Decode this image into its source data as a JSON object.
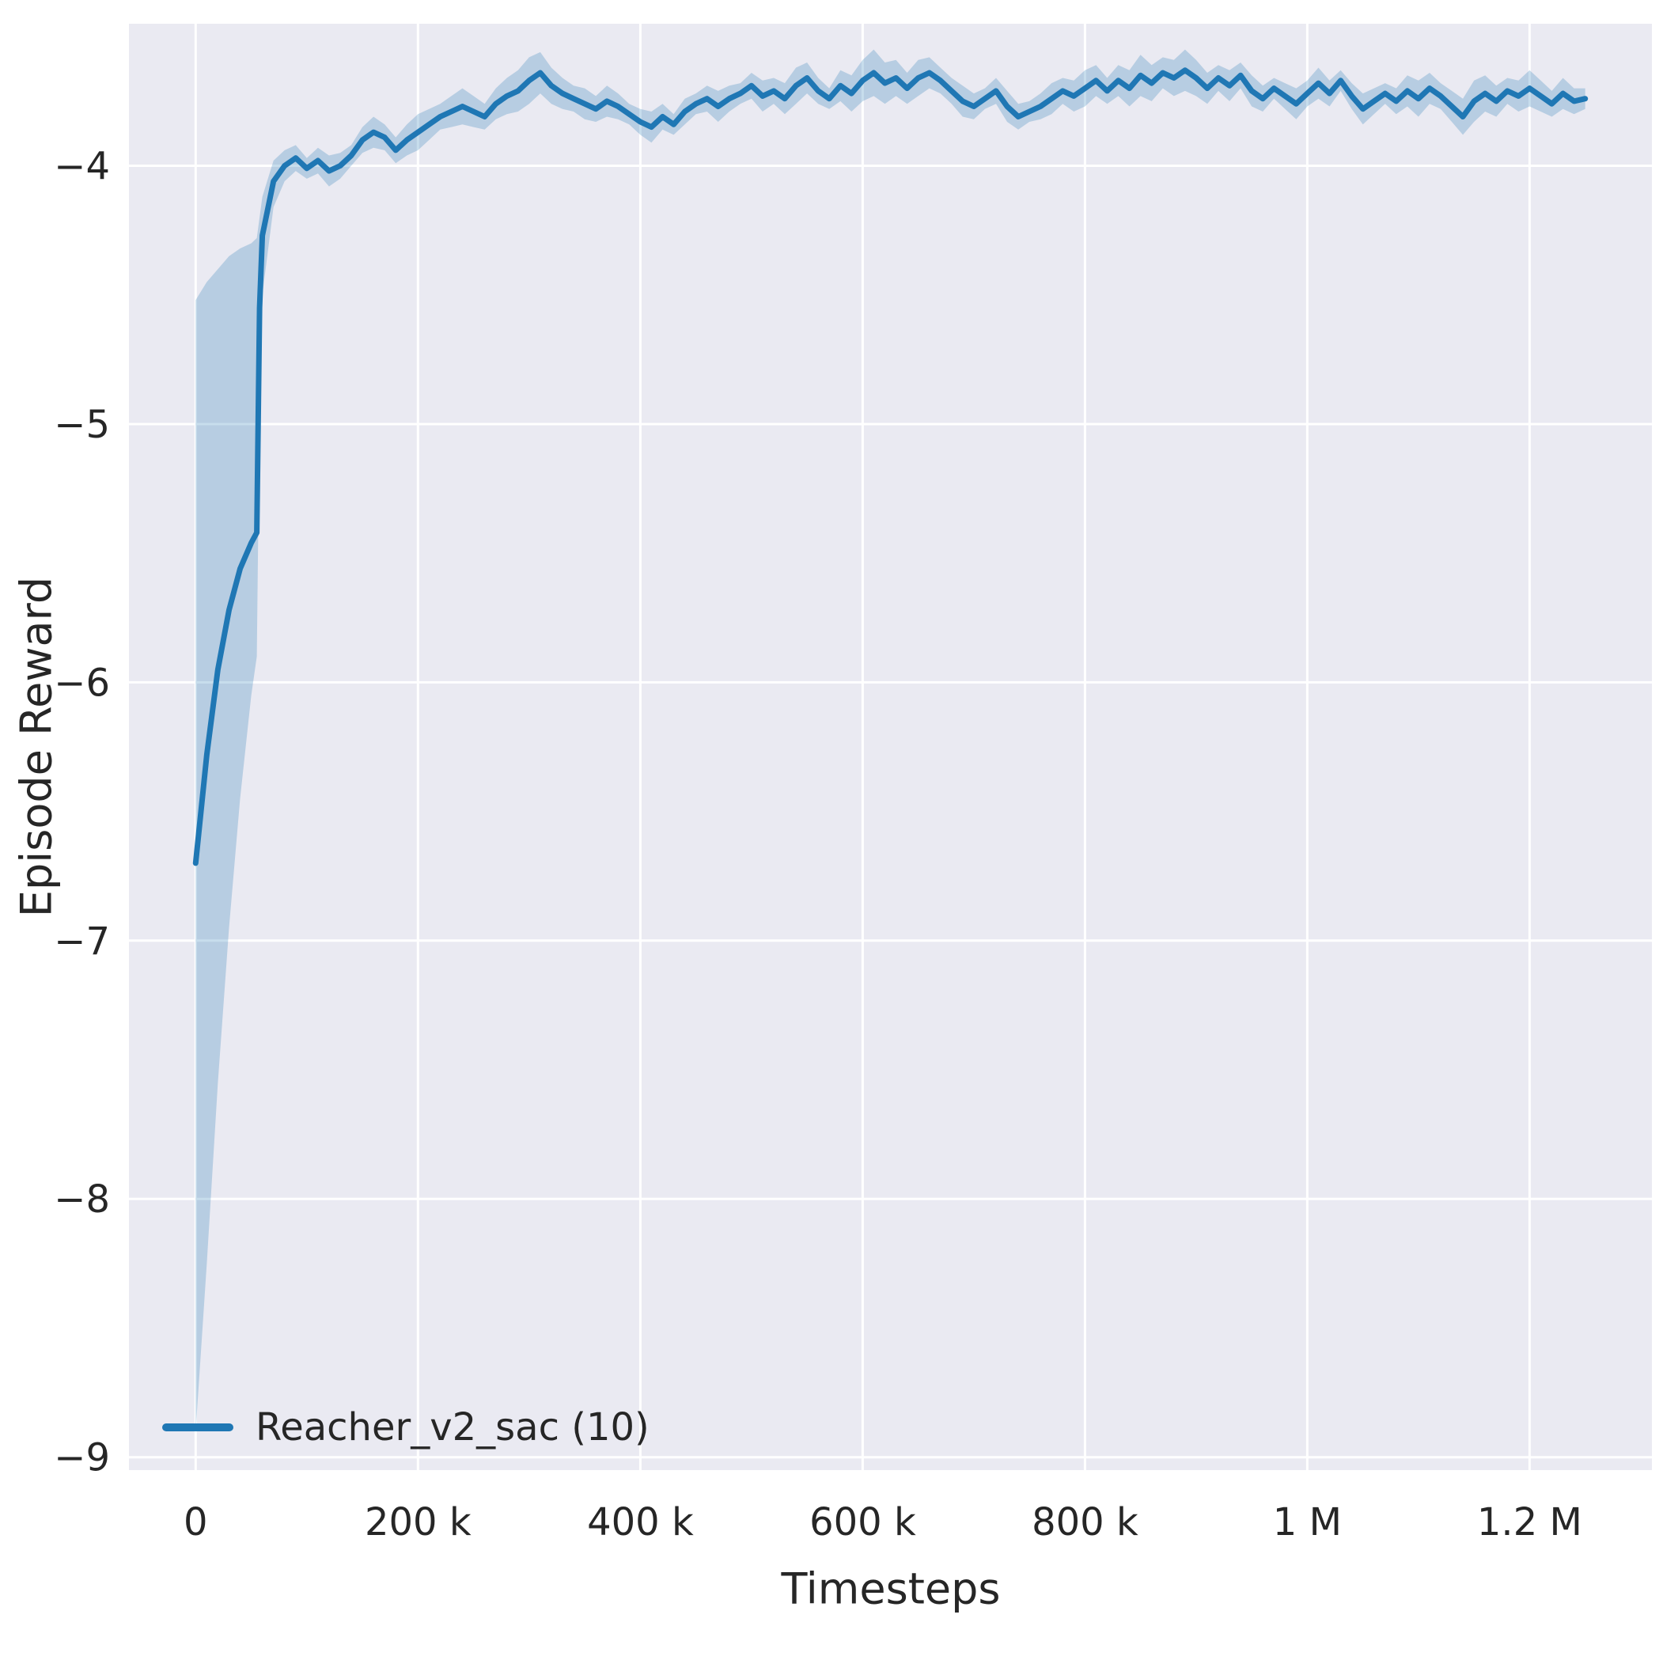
{
  "chart_data": {
    "type": "line",
    "title": "",
    "xlabel": "Timesteps",
    "ylabel": "Episode Reward",
    "xlim": [
      -60000,
      1310000
    ],
    "ylim": [
      -9.05,
      -3.45
    ],
    "grid": true,
    "legend_position": "lower-left",
    "plot_background": "#eaeaf2",
    "grid_color": "#ffffff",
    "text_color": "#262626",
    "xtick_values": [
      0,
      200000,
      400000,
      600000,
      800000,
      1000000,
      1200000
    ],
    "xtick_labels": [
      "0",
      "200 k",
      "400 k",
      "600 k",
      "800 k",
      "1 M",
      "1.2 M"
    ],
    "ytick_values": [
      -4,
      -5,
      -6,
      -7,
      -8,
      -9
    ],
    "ytick_labels": [
      "−4",
      "−5",
      "−6",
      "−7",
      "−8",
      "−9"
    ],
    "series": [
      {
        "name": "Reacher_v2_sac (10)",
        "color": "#1f77b4",
        "band_opacity": 0.25,
        "x": [
          0,
          10000,
          20000,
          30000,
          40000,
          50000,
          55000,
          57500,
          60000,
          70000,
          80000,
          90000,
          100000,
          110000,
          120000,
          130000,
          140000,
          150000,
          160000,
          170000,
          180000,
          190000,
          200000,
          210000,
          220000,
          230000,
          240000,
          250000,
          260000,
          270000,
          280000,
          290000,
          300000,
          310000,
          320000,
          330000,
          340000,
          350000,
          360000,
          370000,
          380000,
          390000,
          400000,
          410000,
          420000,
          430000,
          440000,
          450000,
          460000,
          470000,
          480000,
          490000,
          500000,
          510000,
          520000,
          530000,
          540000,
          550000,
          560000,
          570000,
          580000,
          590000,
          600000,
          610000,
          620000,
          630000,
          640000,
          650000,
          660000,
          670000,
          680000,
          690000,
          700000,
          710000,
          720000,
          730000,
          740000,
          750000,
          760000,
          770000,
          780000,
          790000,
          800000,
          810000,
          820000,
          830000,
          840000,
          850000,
          860000,
          870000,
          880000,
          890000,
          900000,
          910000,
          920000,
          930000,
          940000,
          950000,
          960000,
          970000,
          980000,
          990000,
          1000000,
          1010000,
          1020000,
          1030000,
          1040000,
          1050000,
          1060000,
          1070000,
          1080000,
          1090000,
          1100000,
          1110000,
          1120000,
          1130000,
          1140000,
          1150000,
          1160000,
          1170000,
          1180000,
          1190000,
          1200000,
          1210000,
          1220000,
          1230000,
          1240000,
          1250000
        ],
        "mean": [
          -6.7,
          -6.28,
          -5.95,
          -5.72,
          -5.56,
          -5.46,
          -5.42,
          -4.55,
          -4.27,
          -4.06,
          -4.0,
          -3.97,
          -4.01,
          -3.98,
          -4.02,
          -4.0,
          -3.96,
          -3.9,
          -3.87,
          -3.89,
          -3.94,
          -3.9,
          -3.87,
          -3.84,
          -3.81,
          -3.79,
          -3.77,
          -3.79,
          -3.81,
          -3.76,
          -3.73,
          -3.71,
          -3.67,
          -3.64,
          -3.69,
          -3.72,
          -3.74,
          -3.76,
          -3.78,
          -3.75,
          -3.77,
          -3.8,
          -3.83,
          -3.85,
          -3.81,
          -3.84,
          -3.79,
          -3.76,
          -3.74,
          -3.77,
          -3.74,
          -3.72,
          -3.69,
          -3.73,
          -3.71,
          -3.74,
          -3.69,
          -3.66,
          -3.71,
          -3.74,
          -3.69,
          -3.72,
          -3.67,
          -3.64,
          -3.68,
          -3.66,
          -3.7,
          -3.66,
          -3.64,
          -3.67,
          -3.71,
          -3.75,
          -3.77,
          -3.74,
          -3.71,
          -3.77,
          -3.81,
          -3.79,
          -3.77,
          -3.74,
          -3.71,
          -3.73,
          -3.7,
          -3.67,
          -3.71,
          -3.67,
          -3.7,
          -3.65,
          -3.68,
          -3.64,
          -3.66,
          -3.63,
          -3.66,
          -3.7,
          -3.66,
          -3.69,
          -3.65,
          -3.71,
          -3.74,
          -3.7,
          -3.73,
          -3.76,
          -3.72,
          -3.68,
          -3.72,
          -3.67,
          -3.73,
          -3.78,
          -3.75,
          -3.72,
          -3.75,
          -3.71,
          -3.74,
          -3.7,
          -3.73,
          -3.77,
          -3.81,
          -3.75,
          -3.72,
          -3.75,
          -3.71,
          -3.73,
          -3.7,
          -3.73,
          -3.76,
          -3.72,
          -3.75,
          -3.74
        ],
        "spread_up": [
          2.18,
          1.83,
          1.55,
          1.37,
          1.24,
          1.16,
          1.14,
          0.35,
          0.15,
          0.08,
          0.06,
          0.05,
          0.04,
          0.05,
          0.06,
          0.05,
          0.04,
          0.05,
          0.06,
          0.05,
          0.05,
          0.06,
          0.07,
          0.06,
          0.05,
          0.06,
          0.07,
          0.06,
          0.05,
          0.06,
          0.07,
          0.08,
          0.09,
          0.08,
          0.07,
          0.06,
          0.05,
          0.06,
          0.05,
          0.06,
          0.05,
          0.04,
          0.05,
          0.06,
          0.05,
          0.04,
          0.05,
          0.04,
          0.05,
          0.06,
          0.05,
          0.04,
          0.05,
          0.06,
          0.05,
          0.06,
          0.07,
          0.06,
          0.05,
          0.04,
          0.06,
          0.07,
          0.08,
          0.09,
          0.08,
          0.07,
          0.06,
          0.07,
          0.06,
          0.05,
          0.05,
          0.06,
          0.05,
          0.04,
          0.05,
          0.06,
          0.05,
          0.04,
          0.05,
          0.06,
          0.05,
          0.06,
          0.07,
          0.06,
          0.05,
          0.06,
          0.07,
          0.08,
          0.07,
          0.06,
          0.07,
          0.08,
          0.07,
          0.06,
          0.05,
          0.06,
          0.05,
          0.06,
          0.05,
          0.04,
          0.05,
          0.06,
          0.05,
          0.06,
          0.05,
          0.04,
          0.05,
          0.06,
          0.05,
          0.04,
          0.05,
          0.06,
          0.07,
          0.06,
          0.05,
          0.06,
          0.07,
          0.08,
          0.07,
          0.06,
          0.05,
          0.06,
          0.07,
          0.06,
          0.05,
          0.06,
          0.05,
          0.04
        ],
        "spread_down": [
          2.2,
          1.97,
          1.6,
          1.23,
          0.89,
          0.59,
          0.48,
          0.4,
          0.23,
          0.1,
          0.06,
          0.05,
          0.04,
          0.05,
          0.06,
          0.05,
          0.04,
          0.05,
          0.06,
          0.05,
          0.05,
          0.06,
          0.07,
          0.06,
          0.05,
          0.06,
          0.07,
          0.06,
          0.05,
          0.06,
          0.07,
          0.08,
          0.09,
          0.08,
          0.07,
          0.06,
          0.05,
          0.06,
          0.05,
          0.06,
          0.05,
          0.04,
          0.05,
          0.06,
          0.05,
          0.04,
          0.05,
          0.04,
          0.05,
          0.06,
          0.05,
          0.04,
          0.05,
          0.06,
          0.05,
          0.06,
          0.07,
          0.06,
          0.05,
          0.04,
          0.06,
          0.07,
          0.08,
          0.09,
          0.08,
          0.07,
          0.06,
          0.07,
          0.06,
          0.05,
          0.05,
          0.06,
          0.05,
          0.04,
          0.05,
          0.06,
          0.05,
          0.04,
          0.05,
          0.06,
          0.05,
          0.06,
          0.07,
          0.06,
          0.05,
          0.06,
          0.07,
          0.08,
          0.07,
          0.06,
          0.07,
          0.08,
          0.07,
          0.06,
          0.05,
          0.06,
          0.05,
          0.06,
          0.05,
          0.04,
          0.05,
          0.06,
          0.05,
          0.06,
          0.05,
          0.04,
          0.05,
          0.06,
          0.05,
          0.04,
          0.05,
          0.06,
          0.07,
          0.06,
          0.05,
          0.06,
          0.07,
          0.08,
          0.07,
          0.06,
          0.05,
          0.06,
          0.07,
          0.06,
          0.05,
          0.06,
          0.05,
          0.04
        ]
      }
    ]
  }
}
